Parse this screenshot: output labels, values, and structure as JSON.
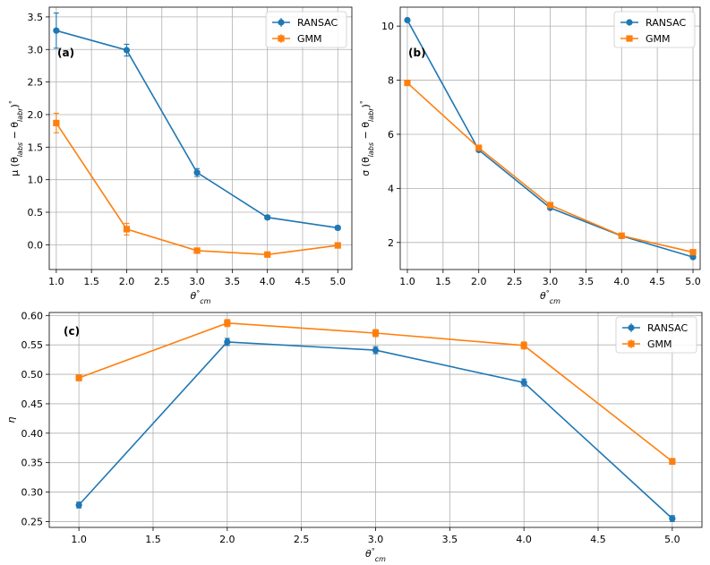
{
  "colors": {
    "ransac": "#1f77b4",
    "gmm": "#ff7f0e"
  },
  "chart_data": [
    {
      "id": "a",
      "type": "line",
      "panel_label": "(a)",
      "xlabel": "θ°cm",
      "ylabel": "μ (θlabs − θlabr)°",
      "x": [
        1.0,
        2.0,
        3.0,
        4.0,
        5.0
      ],
      "xlim": [
        0.9,
        5.2
      ],
      "ylim": [
        -0.38,
        3.65
      ],
      "xticks": [
        1.0,
        1.5,
        2.0,
        2.5,
        3.0,
        3.5,
        4.0,
        4.5,
        5.0
      ],
      "xtick_labels": [
        "1.0",
        "1.5",
        "2.0",
        "2.5",
        "3.0",
        "3.5",
        "4.0",
        "4.5",
        "5.0"
      ],
      "yticks": [
        0.0,
        0.5,
        1.0,
        1.5,
        2.0,
        2.5,
        3.0,
        3.5
      ],
      "ytick_labels": [
        "0.0",
        "0.5",
        "1.0",
        "1.5",
        "2.0",
        "2.5",
        "3.0",
        "3.5"
      ],
      "legend_loc": "top-right",
      "series": [
        {
          "name": "RANSAC",
          "marker": "circle",
          "values": [
            3.29,
            2.99,
            1.11,
            0.42,
            0.26
          ],
          "errors": [
            0.27,
            0.09,
            0.06,
            0.03,
            0.03
          ]
        },
        {
          "name": "GMM",
          "marker": "square",
          "values": [
            1.87,
            0.24,
            -0.09,
            -0.15,
            -0.01
          ],
          "errors": [
            0.15,
            0.09,
            0.03,
            0.02,
            0.02
          ]
        }
      ]
    },
    {
      "id": "b",
      "type": "line",
      "panel_label": "(b)",
      "xlabel": "θ°cm",
      "ylabel": "σ (θlabs − θlabr)°",
      "x": [
        1.0,
        2.0,
        3.0,
        4.0,
        5.0
      ],
      "xlim": [
        0.9,
        5.1
      ],
      "ylim": [
        1.0,
        10.7
      ],
      "xticks": [
        1.0,
        1.5,
        2.0,
        2.5,
        3.0,
        3.5,
        4.0,
        4.5,
        5.0
      ],
      "xtick_labels": [
        "1.0",
        "1.5",
        "2.0",
        "2.5",
        "3.0",
        "3.5",
        "4.0",
        "4.5",
        "5.0"
      ],
      "yticks": [
        2,
        4,
        6,
        8,
        10
      ],
      "ytick_labels": [
        "2",
        "4",
        "6",
        "8",
        "10"
      ],
      "legend_loc": "top-right",
      "series": [
        {
          "name": "RANSAC",
          "marker": "circle",
          "values": [
            10.22,
            5.42,
            3.28,
            2.24,
            1.46
          ],
          "errors": [
            0,
            0,
            0,
            0,
            0
          ]
        },
        {
          "name": "GMM",
          "marker": "square",
          "values": [
            7.9,
            5.5,
            3.38,
            2.25,
            1.64
          ],
          "errors": [
            0,
            0,
            0,
            0,
            0
          ]
        }
      ]
    },
    {
      "id": "c",
      "type": "line",
      "panel_label": "(c)",
      "xlabel": "θ°cm",
      "ylabel": "η",
      "x": [
        1.0,
        2.0,
        3.0,
        4.0,
        5.0
      ],
      "xlim": [
        0.8,
        5.2
      ],
      "ylim": [
        0.24,
        0.605
      ],
      "xticks": [
        1.0,
        1.5,
        2.0,
        2.5,
        3.0,
        3.5,
        4.0,
        4.5,
        5.0
      ],
      "xtick_labels": [
        "1.0",
        "1.5",
        "2.0",
        "2.5",
        "3.0",
        "3.5",
        "4.0",
        "4.5",
        "5.0"
      ],
      "yticks": [
        0.25,
        0.3,
        0.35,
        0.4,
        0.45,
        0.5,
        0.55,
        0.6
      ],
      "ytick_labels": [
        "0.25",
        "0.30",
        "0.35",
        "0.40",
        "0.45",
        "0.50",
        "0.55",
        "0.60"
      ],
      "legend_loc": "top-right",
      "series": [
        {
          "name": "RANSAC",
          "marker": "circle",
          "values": [
            0.278,
            0.555,
            0.541,
            0.486,
            0.255
          ],
          "errors": [
            0.005,
            0.006,
            0.006,
            0.006,
            0.005
          ]
        },
        {
          "name": "GMM",
          "marker": "square",
          "values": [
            0.494,
            0.587,
            0.57,
            0.549,
            0.352
          ],
          "errors": [
            0.005,
            0.006,
            0.006,
            0.006,
            0.005
          ]
        }
      ]
    }
  ]
}
